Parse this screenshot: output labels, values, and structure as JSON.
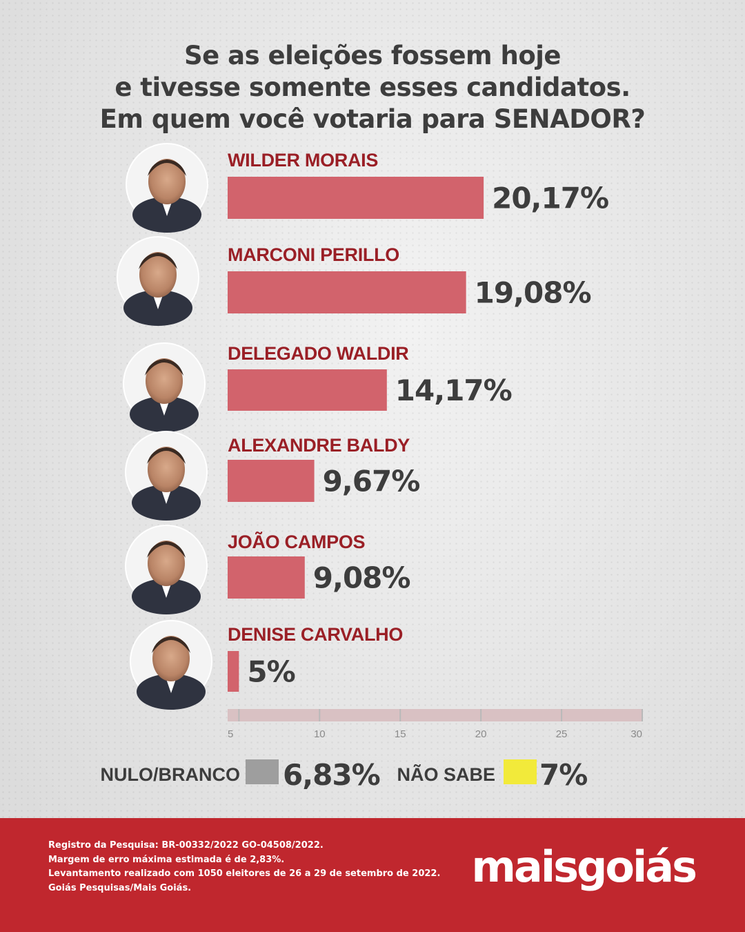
{
  "title_lines": [
    "Se as eleições fossem hoje",
    "e tivesse somente esses candidatos.",
    "Em quem você votaria para SENADOR?"
  ],
  "colors": {
    "bar": "#d2636c",
    "candidate_name": "#9a1f26",
    "nulo_branco": "#9e9e9e",
    "nao_sabe": "#f2ea3a",
    "footer_bg": "#c0272e"
  },
  "chart_data": {
    "type": "bar",
    "orientation": "horizontal",
    "categories": [
      "WILDER MORAIS",
      "MARCONI PERILLO",
      "DELEGADO WALDIR",
      "ALEXANDRE BALDY",
      "JOÃO CAMPOS",
      "DENISE CARVALHO"
    ],
    "values": [
      20.17,
      19.08,
      14.17,
      9.67,
      9.08,
      5
    ],
    "value_labels": [
      "20,17%",
      "19,08%",
      "14,17%",
      "9,67%",
      "9,08%",
      "5%"
    ],
    "xlim": [
      4.3,
      30
    ],
    "xticks": [
      5,
      10,
      15,
      20,
      25,
      30
    ],
    "xtick_labels": [
      "5",
      "10",
      "15",
      "20",
      "25",
      "30"
    ],
    "legend": [
      {
        "label": "NULO/BRANCO",
        "value": 6.83,
        "value_label": "6,83%",
        "color": "#9e9e9e"
      },
      {
        "label": "NÃO SABE",
        "value": 7,
        "value_label": "7%",
        "color": "#f2ea3a"
      }
    ]
  },
  "footer": {
    "notes": [
      "Registro da Pesquisa: BR-00332/2022 GO-04508/2022.",
      "Margem de erro máxima estimada é de 2,83%.",
      "Levantamento realizado com 1050 eleitores de 26 a 29 de setembro de 2022.",
      "Goiás Pesquisas/Mais Goiás."
    ],
    "logo": "maisgoiás"
  }
}
